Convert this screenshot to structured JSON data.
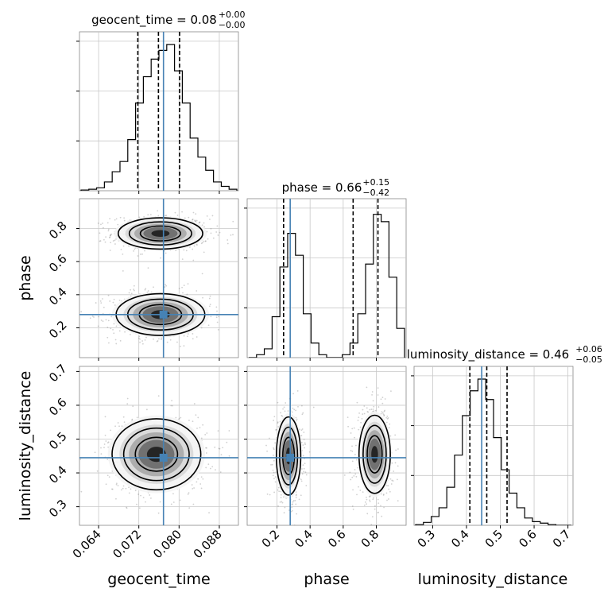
{
  "chart_data": {
    "type": "corner",
    "parameters": [
      "geocent_time",
      "phase",
      "luminosity_distance"
    ],
    "axis_labels": {
      "geocent_time": "geocent_time",
      "phase": "phase",
      "luminosity_distance": "luminosity_distance"
    },
    "titles": [
      {
        "param": "geocent_time",
        "text": "geocent_time = 0.08",
        "plus": "+0.00",
        "minus": "−0.00"
      },
      {
        "param": "phase",
        "text": "phase = 0.66",
        "plus": "+0.15",
        "minus": "−0.42"
      },
      {
        "param": "luminosity_distance",
        "text": "luminosity_distance = 0.46",
        "plus": "+0.06",
        "minus": "−0.05"
      }
    ],
    "ranges": {
      "geocent_time": [
        0.0602,
        0.0918
      ],
      "phase": [
        0.02,
        0.98
      ],
      "luminosity_distance": [
        0.245,
        0.715
      ]
    },
    "ticks": {
      "geocent_time": {
        "values": [
          0.064,
          0.072,
          0.08,
          0.088
        ],
        "labels": [
          "0.064",
          "0.072",
          "0.080",
          "0.088"
        ]
      },
      "phase": {
        "values": [
          0.2,
          0.4,
          0.6,
          0.8
        ],
        "labels": [
          "0.2",
          "0.4",
          "0.6",
          "0.8"
        ]
      },
      "luminosity_distance": {
        "values": [
          0.3,
          0.4,
          0.5,
          0.6,
          0.7
        ],
        "labels": [
          "0.3",
          "0.4",
          "0.5",
          "0.6",
          "0.7"
        ]
      }
    },
    "truths": {
      "geocent_time": 0.0769,
      "phase": 0.28,
      "luminosity_distance": 0.445
    },
    "quantiles": {
      "geocent_time": [
        0.0718,
        0.0759,
        0.0801
      ],
      "phase": [
        0.24,
        0.66,
        0.81
      ],
      "luminosity_distance": [
        0.41,
        0.46,
        0.52
      ]
    },
    "histograms": {
      "geocent_time": [
        0.005,
        0.01,
        0.02,
        0.06,
        0.13,
        0.2,
        0.35,
        0.6,
        0.78,
        0.9,
        0.96,
        1.0,
        0.82,
        0.6,
        0.36,
        0.23,
        0.14,
        0.06,
        0.03,
        0.01
      ],
      "phase": [
        0.0,
        0.02,
        0.06,
        0.28,
        0.62,
        0.85,
        0.7,
        0.3,
        0.1,
        0.02,
        0.0,
        0.0,
        0.02,
        0.1,
        0.3,
        0.64,
        0.98,
        0.93,
        0.55,
        0.2
      ],
      "luminosity_distance": [
        0.005,
        0.02,
        0.06,
        0.12,
        0.26,
        0.48,
        0.75,
        0.92,
        1.0,
        0.86,
        0.6,
        0.38,
        0.22,
        0.12,
        0.05,
        0.025,
        0.015,
        0.005,
        0.0,
        0.0
      ]
    },
    "blobs_2d": [
      {
        "x": "geocent_time",
        "y": "phase",
        "cx": 0.0763,
        "cy": 0.77,
        "sx": 0.004,
        "sy": 0.045
      },
      {
        "x": "geocent_time",
        "y": "phase",
        "cx": 0.0763,
        "cy": 0.28,
        "sx": 0.0042,
        "sy": 0.06
      },
      {
        "x": "geocent_time",
        "y": "luminosity_distance",
        "cx": 0.0755,
        "cy": 0.455,
        "sx": 0.0042,
        "sy": 0.05
      },
      {
        "x": "phase",
        "y": "luminosity_distance",
        "cx": 0.27,
        "cy": 0.45,
        "sx": 0.035,
        "sy": 0.055
      },
      {
        "x": "phase",
        "y": "luminosity_distance",
        "cx": 0.79,
        "cy": 0.455,
        "sx": 0.045,
        "sy": 0.055
      }
    ],
    "colors": {
      "truth": "#4682b4",
      "hist": "#000000",
      "grid": "#c8c8c8"
    },
    "grid": true
  }
}
